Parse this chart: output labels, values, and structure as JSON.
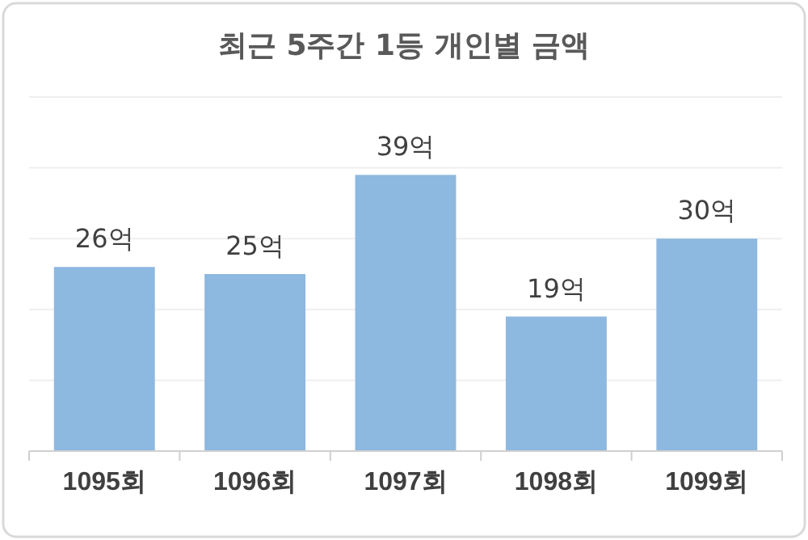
{
  "chart_data": {
    "type": "bar",
    "title": "최근 5주간 1등 개인별 금액",
    "categories": [
      "1095회",
      "1096회",
      "1097회",
      "1098회",
      "1099회"
    ],
    "values": [
      26,
      25,
      39,
      19,
      30
    ],
    "value_labels": [
      "26억",
      "25억",
      "39억",
      "19억",
      "30억"
    ],
    "color": "#8db8e0",
    "ylim": [
      0,
      50
    ],
    "yticks": [
      {
        "value": 0,
        "label": null
      },
      {
        "value": 10,
        "label": null
      },
      {
        "value": 20,
        "label": null
      },
      {
        "value": 30,
        "label": null
      },
      {
        "value": 40,
        "label": null
      },
      {
        "value": 50,
        "label": null
      }
    ],
    "grid": "y",
    "tick_labels": "x"
  }
}
